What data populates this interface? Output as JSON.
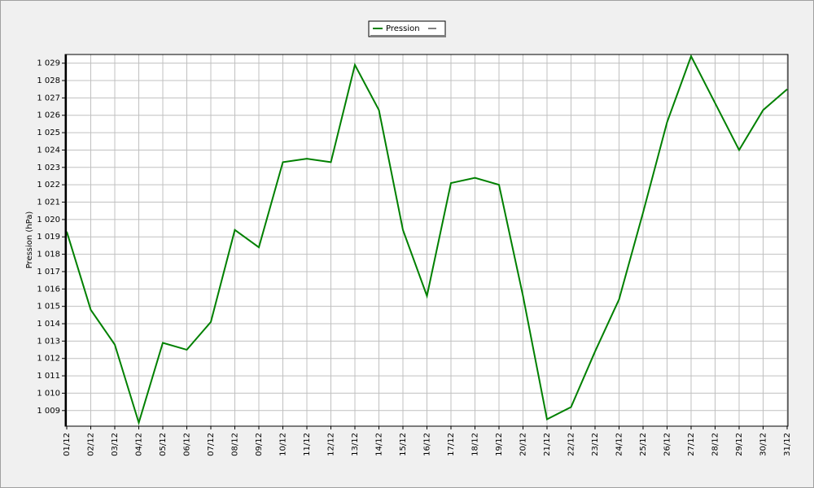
{
  "chart_data": {
    "type": "line",
    "y_label": "Pression (hPa)",
    "categories": [
      "01/12",
      "02/12",
      "03/12",
      "04/12",
      "05/12",
      "06/12",
      "07/12",
      "08/12",
      "09/12",
      "10/12",
      "11/12",
      "12/12",
      "13/12",
      "14/12",
      "15/12",
      "16/12",
      "17/12",
      "18/12",
      "19/12",
      "20/12",
      "21/12",
      "22/12",
      "23/12",
      "24/12",
      "25/12",
      "26/12",
      "27/12",
      "28/12",
      "29/12",
      "30/12",
      "31/12"
    ],
    "series": [
      {
        "name": "Pression",
        "color": "#008000",
        "values": [
          1019.3,
          1014.8,
          1012.8,
          1008.3,
          1012.9,
          1012.5,
          1014.1,
          1019.4,
          1018.4,
          1023.3,
          1023.5,
          1023.3,
          1028.9,
          1026.3,
          1019.4,
          1015.6,
          1022.1,
          1022.4,
          1022.0,
          1015.6,
          1008.5,
          1009.2,
          1012.4,
          1015.4,
          1020.4,
          1025.6,
          1029.4,
          1026.7,
          1024.0,
          1026.3,
          1027.5
        ]
      }
    ],
    "ylim": [
      1008.1,
      1029.5
    ],
    "yticks": [
      {
        "value": 1009,
        "label": "1 009"
      },
      {
        "value": 1010,
        "label": "1 010"
      },
      {
        "value": 1011,
        "label": "1 011"
      },
      {
        "value": 1012,
        "label": "1 012"
      },
      {
        "value": 1013,
        "label": "1 013"
      },
      {
        "value": 1014,
        "label": "1 014"
      },
      {
        "value": 1015,
        "label": "1 015"
      },
      {
        "value": 1016,
        "label": "1 016"
      },
      {
        "value": 1017,
        "label": "1 017"
      },
      {
        "value": 1018,
        "label": "1 018"
      },
      {
        "value": 1019,
        "label": "1 019"
      },
      {
        "value": 1020,
        "label": "1 020"
      },
      {
        "value": 1021,
        "label": "1 021"
      },
      {
        "value": 1022,
        "label": "1 022"
      },
      {
        "value": 1023,
        "label": "1 023"
      },
      {
        "value": 1024,
        "label": "1 024"
      },
      {
        "value": 1025,
        "label": "1 025"
      },
      {
        "value": 1026,
        "label": "1 026"
      },
      {
        "value": 1027,
        "label": "1 027"
      },
      {
        "value": 1028,
        "label": "1 028"
      },
      {
        "value": 1029,
        "label": "1 029"
      }
    ],
    "grid": true
  }
}
